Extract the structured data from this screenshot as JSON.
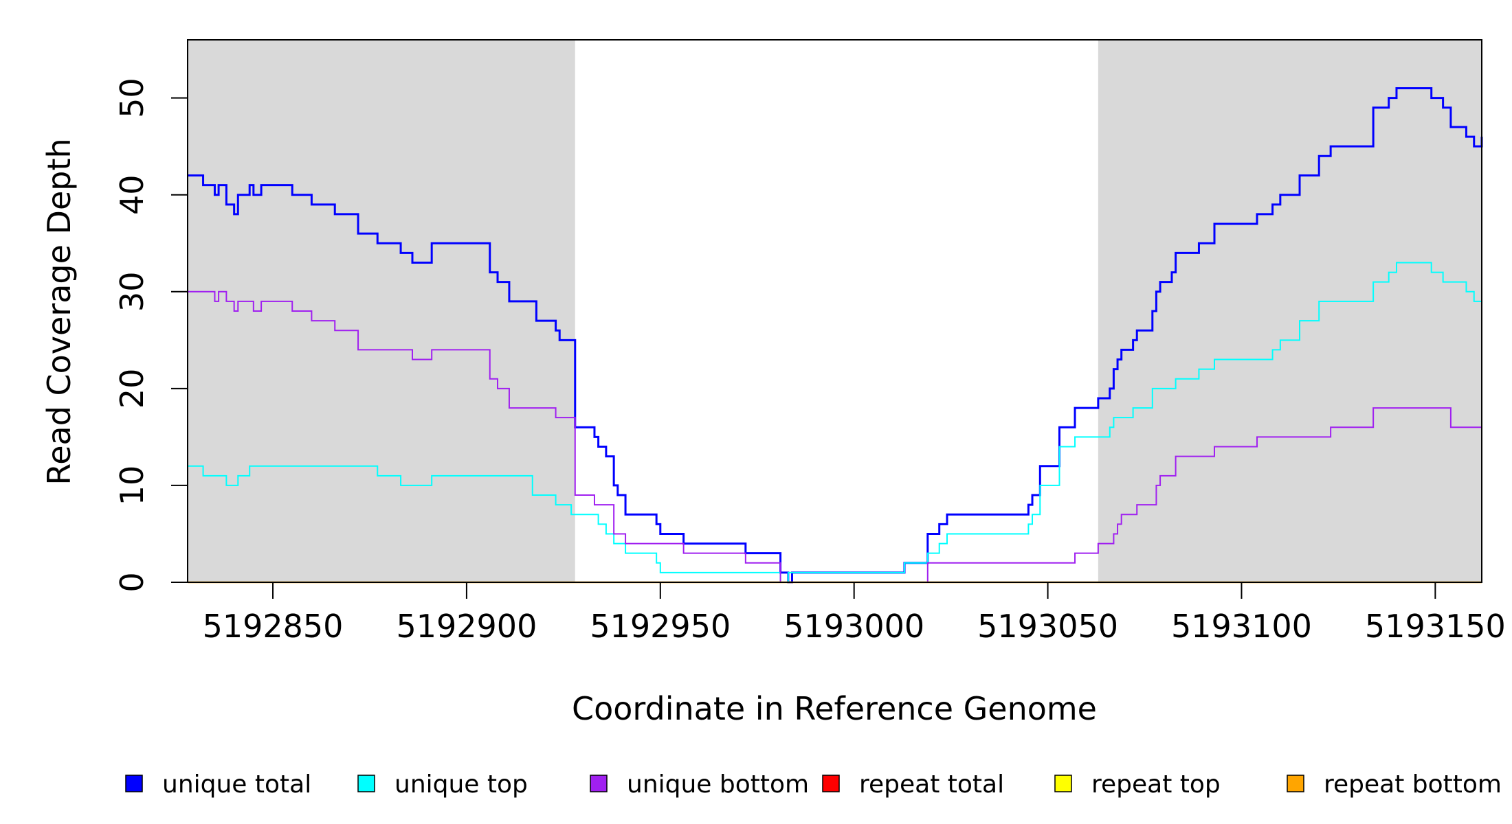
{
  "chart_data": {
    "type": "line",
    "title": "",
    "xlabel": "Coordinate in Reference Genome",
    "ylabel": "Read Coverage Depth",
    "xlim": [
      5192828,
      5193162
    ],
    "ylim": [
      0,
      56
    ],
    "x_ticks": [
      5192850,
      5192900,
      5192950,
      5193000,
      5193050,
      5193100,
      5193150
    ],
    "y_ticks": [
      0,
      10,
      20,
      30,
      40,
      50
    ],
    "shaded_regions": [
      [
        5192828,
        5192928
      ],
      [
        5193063,
        5193162
      ]
    ],
    "grid": false,
    "legend_position": "bottom",
    "colors": {
      "shade": "#d9d9d9",
      "axis": "#000000"
    },
    "series": [
      {
        "name": "unique total",
        "color": "#0000ff",
        "points": [
          [
            5192828,
            42
          ],
          [
            5192832,
            41
          ],
          [
            5192835,
            40
          ],
          [
            5192836,
            41
          ],
          [
            5192838,
            39
          ],
          [
            5192840,
            38
          ],
          [
            5192841,
            40
          ],
          [
            5192844,
            41
          ],
          [
            5192845,
            40
          ],
          [
            5192847,
            41
          ],
          [
            5192855,
            40
          ],
          [
            5192860,
            39
          ],
          [
            5192866,
            38
          ],
          [
            5192872,
            36
          ],
          [
            5192877,
            35
          ],
          [
            5192883,
            34
          ],
          [
            5192886,
            33
          ],
          [
            5192891,
            35
          ],
          [
            5192906,
            32
          ],
          [
            5192908,
            31
          ],
          [
            5192911,
            29
          ],
          [
            5192918,
            27
          ],
          [
            5192923,
            26
          ],
          [
            5192924,
            25
          ],
          [
            5192928,
            16
          ],
          [
            5192933,
            15
          ],
          [
            5192934,
            14
          ],
          [
            5192936,
            13
          ],
          [
            5192938,
            10
          ],
          [
            5192939,
            9
          ],
          [
            5192941,
            7
          ],
          [
            5192949,
            6
          ],
          [
            5192950,
            5
          ],
          [
            5192956,
            4
          ],
          [
            5192972,
            3
          ],
          [
            5192981,
            1
          ],
          [
            5192983,
            0
          ],
          [
            5192984,
            1
          ],
          [
            5193013,
            2
          ],
          [
            5193019,
            5
          ],
          [
            5193022,
            6
          ],
          [
            5193024,
            7
          ],
          [
            5193045,
            8
          ],
          [
            5193046,
            9
          ],
          [
            5193048,
            12
          ],
          [
            5193053,
            16
          ],
          [
            5193057,
            18
          ],
          [
            5193063,
            19
          ],
          [
            5193066,
            20
          ],
          [
            5193067,
            22
          ],
          [
            5193068,
            23
          ],
          [
            5193069,
            24
          ],
          [
            5193072,
            25
          ],
          [
            5193073,
            26
          ],
          [
            5193077,
            28
          ],
          [
            5193078,
            30
          ],
          [
            5193079,
            31
          ],
          [
            5193082,
            32
          ],
          [
            5193083,
            34
          ],
          [
            5193089,
            35
          ],
          [
            5193093,
            37
          ],
          [
            5193104,
            38
          ],
          [
            5193108,
            39
          ],
          [
            5193110,
            40
          ],
          [
            5193115,
            42
          ],
          [
            5193120,
            44
          ],
          [
            5193123,
            45
          ],
          [
            5193134,
            49
          ],
          [
            5193138,
            50
          ],
          [
            5193140,
            51
          ],
          [
            5193149,
            50
          ],
          [
            5193152,
            49
          ],
          [
            5193154,
            47
          ],
          [
            5193158,
            46
          ],
          [
            5193160,
            45
          ],
          [
            5193162,
            46
          ]
        ]
      },
      {
        "name": "unique top",
        "color": "#00ffff",
        "points": [
          [
            5192828,
            12
          ],
          [
            5192832,
            11
          ],
          [
            5192838,
            10
          ],
          [
            5192841,
            11
          ],
          [
            5192844,
            12
          ],
          [
            5192877,
            11
          ],
          [
            5192883,
            10
          ],
          [
            5192891,
            11
          ],
          [
            5192917,
            9
          ],
          [
            5192923,
            8
          ],
          [
            5192927,
            7
          ],
          [
            5192934,
            6
          ],
          [
            5192936,
            5
          ],
          [
            5192938,
            4
          ],
          [
            5192941,
            3
          ],
          [
            5192949,
            2
          ],
          [
            5192950,
            1
          ],
          [
            5192981,
            0
          ],
          [
            5192983,
            1
          ],
          [
            5193013,
            2
          ],
          [
            5193019,
            3
          ],
          [
            5193022,
            4
          ],
          [
            5193024,
            5
          ],
          [
            5193045,
            6
          ],
          [
            5193046,
            7
          ],
          [
            5193048,
            10
          ],
          [
            5193053,
            14
          ],
          [
            5193057,
            15
          ],
          [
            5193066,
            16
          ],
          [
            5193067,
            17
          ],
          [
            5193072,
            18
          ],
          [
            5193077,
            20
          ],
          [
            5193083,
            21
          ],
          [
            5193089,
            22
          ],
          [
            5193093,
            23
          ],
          [
            5193108,
            24
          ],
          [
            5193110,
            25
          ],
          [
            5193115,
            27
          ],
          [
            5193120,
            29
          ],
          [
            5193134,
            31
          ],
          [
            5193138,
            32
          ],
          [
            5193140,
            33
          ],
          [
            5193149,
            32
          ],
          [
            5193152,
            31
          ],
          [
            5193158,
            30
          ],
          [
            5193160,
            29
          ],
          [
            5193162,
            29
          ]
        ]
      },
      {
        "name": "unique bottom",
        "color": "#a020f0",
        "points": [
          [
            5192828,
            30
          ],
          [
            5192835,
            29
          ],
          [
            5192836,
            30
          ],
          [
            5192838,
            29
          ],
          [
            5192840,
            28
          ],
          [
            5192841,
            29
          ],
          [
            5192845,
            28
          ],
          [
            5192847,
            29
          ],
          [
            5192855,
            28
          ],
          [
            5192860,
            27
          ],
          [
            5192866,
            26
          ],
          [
            5192872,
            24
          ],
          [
            5192886,
            23
          ],
          [
            5192891,
            24
          ],
          [
            5192906,
            21
          ],
          [
            5192908,
            20
          ],
          [
            5192911,
            18
          ],
          [
            5192923,
            17
          ],
          [
            5192928,
            9
          ],
          [
            5192933,
            8
          ],
          [
            5192938,
            5
          ],
          [
            5192941,
            4
          ],
          [
            5192956,
            3
          ],
          [
            5192972,
            2
          ],
          [
            5192981,
            0
          ],
          [
            5193019,
            2
          ],
          [
            5193057,
            3
          ],
          [
            5193063,
            4
          ],
          [
            5193067,
            5
          ],
          [
            5193068,
            6
          ],
          [
            5193069,
            7
          ],
          [
            5193073,
            8
          ],
          [
            5193078,
            10
          ],
          [
            5193079,
            11
          ],
          [
            5193083,
            13
          ],
          [
            5193093,
            14
          ],
          [
            5193104,
            15
          ],
          [
            5193123,
            16
          ],
          [
            5193134,
            18
          ],
          [
            5193154,
            16
          ],
          [
            5193162,
            17
          ]
        ]
      },
      {
        "name": "repeat total",
        "color": "#ff0000",
        "points": [
          [
            5192828,
            0
          ],
          [
            5193162,
            0
          ]
        ]
      },
      {
        "name": "repeat top",
        "color": "#ffff00",
        "points": [
          [
            5192828,
            0
          ],
          [
            5193162,
            0
          ]
        ]
      },
      {
        "name": "repeat bottom",
        "color": "#ffa500",
        "points": [
          [
            5192828,
            0
          ],
          [
            5193162,
            0
          ]
        ]
      }
    ]
  }
}
